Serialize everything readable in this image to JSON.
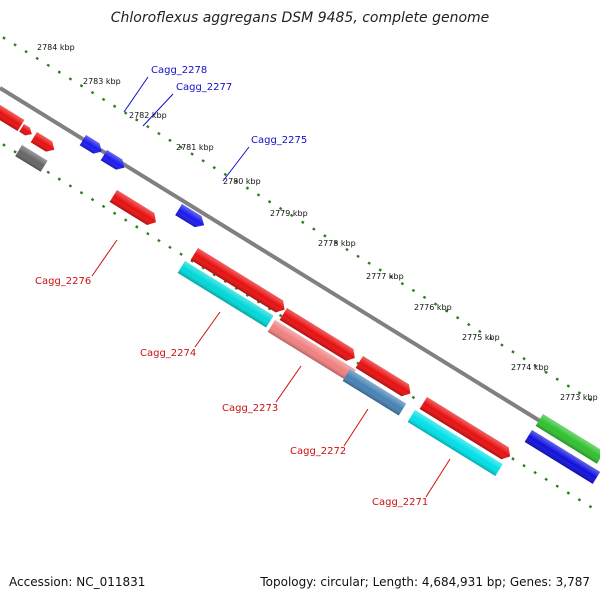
{
  "title": "Chloroflexus aggregans DSM 9485, complete genome",
  "footer": {
    "accession": "Accession: NC_011831",
    "summary": "Topology: circular; Length: 4,684,931 bp; Genes: 3,787"
  },
  "colors": {
    "backbone": "#808080",
    "tick": "#2e7d1e",
    "forward_label": "#1010cc",
    "reverse_label": "#cc1010"
  },
  "ticks": [
    "2784 kbp",
    "2783 kbp",
    "2782 kbp",
    "2781 kbp",
    "2780 kbp",
    "2779 kbp",
    "2778 kbp",
    "2777 kbp",
    "2776 kbp",
    "2775 kbp",
    "2774 kbp",
    "2773 kbp"
  ],
  "gene_labels": [
    {
      "text": "Cagg_2278",
      "strand": "forward"
    },
    {
      "text": "Cagg_2277",
      "strand": "forward"
    },
    {
      "text": "Cagg_2275",
      "strand": "forward"
    },
    {
      "text": "Cagg_2276",
      "strand": "reverse"
    },
    {
      "text": "Cagg_2274",
      "strand": "reverse"
    },
    {
      "text": "Cagg_2273",
      "strand": "reverse"
    },
    {
      "text": "Cagg_2272",
      "strand": "reverse"
    },
    {
      "text": "Cagg_2271",
      "strand": "reverse"
    }
  ],
  "features": [
    {
      "color": "#e81010",
      "strand": "forward"
    },
    {
      "color": "#e81010",
      "strand": "forward"
    },
    {
      "color": "#e81010",
      "strand": "forward"
    },
    {
      "color": "#666666",
      "strand": "forward"
    },
    {
      "color": "#1a1aee",
      "strand": "forward"
    },
    {
      "color": "#1a1aee",
      "strand": "forward"
    },
    {
      "color": "#e81010",
      "strand": "forward"
    },
    {
      "color": "#1a1aee",
      "strand": "forward"
    },
    {
      "color": "#e81010",
      "strand": "forward"
    },
    {
      "color": "#e81010",
      "strand": "forward"
    },
    {
      "color": "#e81010",
      "strand": "forward"
    },
    {
      "color": "#e81010",
      "strand": "forward"
    },
    {
      "color": "#00d8d8",
      "strand": "reverse"
    },
    {
      "color": "#f08080",
      "strand": "reverse"
    },
    {
      "color": "#4682b4",
      "strand": "reverse"
    },
    {
      "color": "#00e0e8",
      "strand": "reverse"
    },
    {
      "color": "#30c030",
      "strand": "forward"
    },
    {
      "color": "#1010dd",
      "strand": "forward"
    }
  ]
}
